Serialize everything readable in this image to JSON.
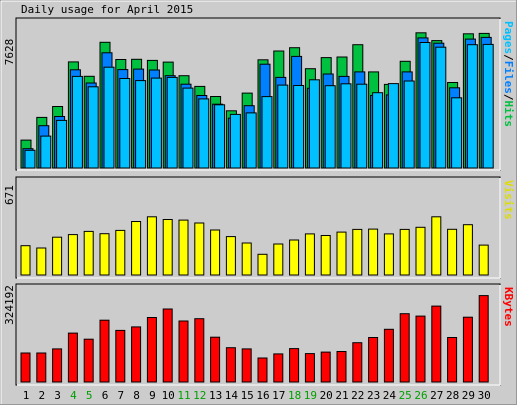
{
  "chart_data": [
    {
      "type": "bar",
      "title": "Daily usage for April 2015",
      "ylabel": "Pages/Files/Hits",
      "ylabel_parts": [
        "Pages",
        "/",
        "Files",
        "/",
        "Hits"
      ],
      "ymax_label": "7628",
      "ylim": [
        0,
        7628
      ],
      "categories": [
        "1",
        "2",
        "3",
        "4",
        "5",
        "6",
        "7",
        "8",
        "9",
        "10",
        "11",
        "12",
        "13",
        "14",
        "15",
        "16",
        "17",
        "18",
        "19",
        "20",
        "21",
        "22",
        "23",
        "24",
        "25",
        "26",
        "27",
        "28",
        "29",
        "30"
      ],
      "weekend_days": [
        "4",
        "5",
        "11",
        "12",
        "18",
        "19",
        "25",
        "26"
      ],
      "series": [
        {
          "name": "Hits",
          "color": "#00c040",
          "values": [
            1480,
            2680,
            3260,
            5620,
            4860,
            6660,
            5750,
            5760,
            5700,
            5610,
            4890,
            4320,
            3790,
            3030,
            3970,
            5730,
            6200,
            6370,
            5260,
            5850,
            5880,
            6530,
            5090,
            4430,
            5650,
            7160,
            6750,
            4530,
            7110,
            7130
          ]
        },
        {
          "name": "Files",
          "color": "#0080ff",
          "values": [
            1020,
            2240,
            2730,
            5200,
            4500,
            6100,
            5210,
            5240,
            5190,
            4890,
            4440,
            3840,
            3380,
            2640,
            3300,
            5500,
            4800,
            5910,
            4220,
            4980,
            4850,
            5090,
            3840,
            3870,
            5090,
            6890,
            6610,
            4250,
            6830,
            6920
          ]
        },
        {
          "name": "Pages",
          "color": "#00c0ff",
          "values": [
            940,
            1690,
            2520,
            4850,
            4300,
            5340,
            4740,
            4630,
            4760,
            4800,
            4230,
            3660,
            3350,
            2840,
            2920,
            3780,
            4390,
            4370,
            4670,
            4360,
            4460,
            4440,
            3990,
            4470,
            4610,
            6650,
            6400,
            3720,
            6530,
            6550
          ]
        }
      ]
    },
    {
      "type": "bar",
      "ylabel": "Visits",
      "ymax_label": "671",
      "ylim": [
        0,
        671
      ],
      "categories": [
        "1",
        "2",
        "3",
        "4",
        "5",
        "6",
        "7",
        "8",
        "9",
        "10",
        "11",
        "12",
        "13",
        "14",
        "15",
        "16",
        "17",
        "18",
        "19",
        "20",
        "21",
        "22",
        "23",
        "24",
        "25",
        "26",
        "27",
        "28",
        "29",
        "30"
      ],
      "series": [
        {
          "name": "Visits",
          "color": "#ffff00",
          "values": [
            207,
            191,
            267,
            285,
            308,
            292,
            315,
            378,
            411,
            392,
            388,
            367,
            318,
            271,
            226,
            146,
            219,
            247,
            290,
            279,
            303,
            322,
            324,
            290,
            322,
            337,
            411,
            323,
            355,
            211
          ]
        }
      ]
    },
    {
      "type": "bar",
      "ylabel": "KBytes",
      "ymax_label": "324192",
      "ylim": [
        0,
        324192
      ],
      "categories": [
        "1",
        "2",
        "3",
        "4",
        "5",
        "6",
        "7",
        "8",
        "9",
        "10",
        "11",
        "12",
        "13",
        "14",
        "15",
        "16",
        "17",
        "18",
        "19",
        "20",
        "21",
        "22",
        "23",
        "24",
        "25",
        "26",
        "27",
        "28",
        "29",
        "30"
      ],
      "series": [
        {
          "name": "KBytes",
          "color": "#ff0000",
          "values": [
            99000,
            99000,
            113000,
            167000,
            146000,
            211000,
            176000,
            188000,
            220000,
            249000,
            208000,
            216000,
            153000,
            117000,
            113000,
            82000,
            96000,
            114000,
            97000,
            102000,
            104000,
            134000,
            152000,
            180000,
            233000,
            225000,
            259000,
            152000,
            221000,
            295000
          ]
        }
      ]
    }
  ]
}
